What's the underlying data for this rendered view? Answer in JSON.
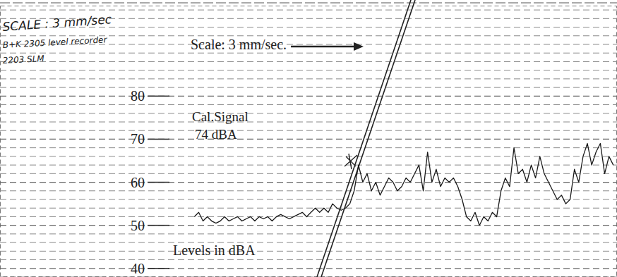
{
  "chart_data": {
    "type": "line",
    "x": [
      31.5,
      32.2,
      32.9,
      33.6,
      34.3,
      35.0,
      35.7,
      36.4,
      37.1,
      37.8,
      38.5,
      39.2,
      39.9,
      40.6,
      41.3,
      42.0,
      42.7,
      43.4,
      44.1,
      44.8,
      45.5,
      46.2,
      46.9,
      47.6,
      48.3,
      49.0,
      49.7,
      50.4,
      51.1,
      51.8,
      52.5,
      53.2,
      53.9,
      54.6,
      55.3,
      56.0,
      56.7,
      57.4,
      58.1,
      58.8,
      59.5,
      60.2,
      60.9,
      61.6,
      62.3,
      63.0,
      63.7,
      64.4,
      65.1,
      65.8,
      66.5,
      67.2,
      67.9,
      68.6,
      69.3,
      70.0,
      70.7,
      71.4,
      72.1,
      72.8,
      73.5,
      74.2,
      74.9,
      75.6,
      76.3,
      77.0,
      77.7,
      78.4,
      79.1,
      79.8,
      80.5,
      81.2,
      81.9,
      82.6,
      83.3,
      84.0,
      84.7,
      85.4,
      86.1,
      86.8,
      87.5,
      88.2,
      88.9,
      89.6,
      90.3,
      91.0,
      91.7,
      92.4,
      93.1,
      93.8,
      94.5,
      95.2,
      95.9,
      96.6,
      97.3,
      98.0,
      98.7,
      99.4
    ],
    "values": [
      52,
      53,
      51,
      52,
      51,
      50.5,
      51,
      52,
      51,
      51.5,
      52,
      51,
      51.5,
      52,
      51,
      52,
      51.5,
      52,
      51,
      52,
      52.5,
      52,
      51.5,
      52,
      52.5,
      53,
      52,
      53,
      54,
      53,
      54,
      53,
      55,
      54,
      53.5,
      54,
      55,
      58,
      64,
      60,
      62,
      58,
      60,
      57,
      59,
      61,
      60,
      58,
      59,
      61,
      60,
      62,
      64,
      58,
      67,
      60,
      63,
      59,
      61,
      60,
      61,
      59,
      56,
      52,
      51,
      53,
      50,
      52,
      51,
      53,
      52,
      58,
      61,
      59,
      68,
      62,
      63,
      60,
      64,
      61,
      66,
      62,
      60,
      58,
      56,
      57,
      55,
      56,
      63,
      60,
      66,
      69,
      64,
      67,
      69,
      62,
      66,
      64
    ],
    "color": "#1a1a1a",
    "xlim": [
      0,
      100
    ],
    "ylim": [
      38,
      101
    ],
    "yticks": [
      40,
      50,
      60,
      70,
      80
    ],
    "y_label": "Levels in dBA",
    "annotations": [
      "Scale: 3 mm/sec.",
      "Cal.Signal",
      "74 dBA",
      "SCALE : 3 mm/sec",
      "B+K 2305 level recorder",
      "2203 SLM"
    ],
    "grid": true,
    "tick_labels": "y"
  }
}
